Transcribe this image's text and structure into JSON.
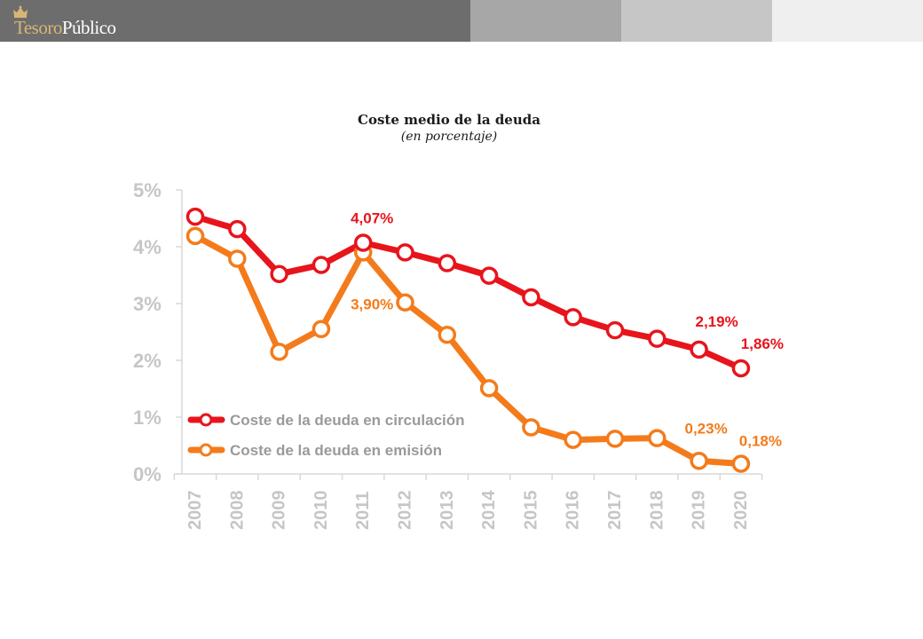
{
  "brand": {
    "logo_part1": "Tesoro",
    "logo_part2": "Público",
    "gold": "#d9b677"
  },
  "chart_data": {
    "type": "line",
    "title": "Coste medio de la deuda",
    "subtitle": "(en porcentaje)",
    "x": [
      "2007",
      "2008",
      "2009",
      "2010",
      "2011",
      "2012",
      "2013",
      "2014",
      "2015",
      "2016",
      "2017",
      "2018",
      "2019",
      "2020"
    ],
    "ylim": [
      0,
      5
    ],
    "y_ticks": [
      "0%",
      "1%",
      "2%",
      "3%",
      "4%",
      "5%"
    ],
    "grid": false,
    "legend_position": "bottom-left",
    "series": [
      {
        "name": "Coste de la deuda en circulación",
        "color": "#e8141c",
        "values": [
          4.53,
          4.31,
          3.52,
          3.68,
          4.07,
          3.9,
          3.71,
          3.49,
          3.11,
          2.76,
          2.53,
          2.38,
          2.19,
          1.86
        ]
      },
      {
        "name": "Coste de la deuda en emisión",
        "color": "#f47b1b",
        "values": [
          4.19,
          3.79,
          2.15,
          2.55,
          3.9,
          3.02,
          2.45,
          1.51,
          0.82,
          0.6,
          0.62,
          0.63,
          0.23,
          0.18
        ]
      }
    ],
    "annotations": [
      {
        "series": 0,
        "point": 4,
        "text": "4,07%"
      },
      {
        "series": 1,
        "point": 4,
        "text": "3,90%"
      },
      {
        "series": 0,
        "point": 12,
        "text": "2,19%"
      },
      {
        "series": 0,
        "point": 13,
        "text": "1,86%"
      },
      {
        "series": 1,
        "point": 12,
        "text": "0,23%"
      },
      {
        "series": 1,
        "point": 13,
        "text": "0,18%"
      }
    ]
  }
}
